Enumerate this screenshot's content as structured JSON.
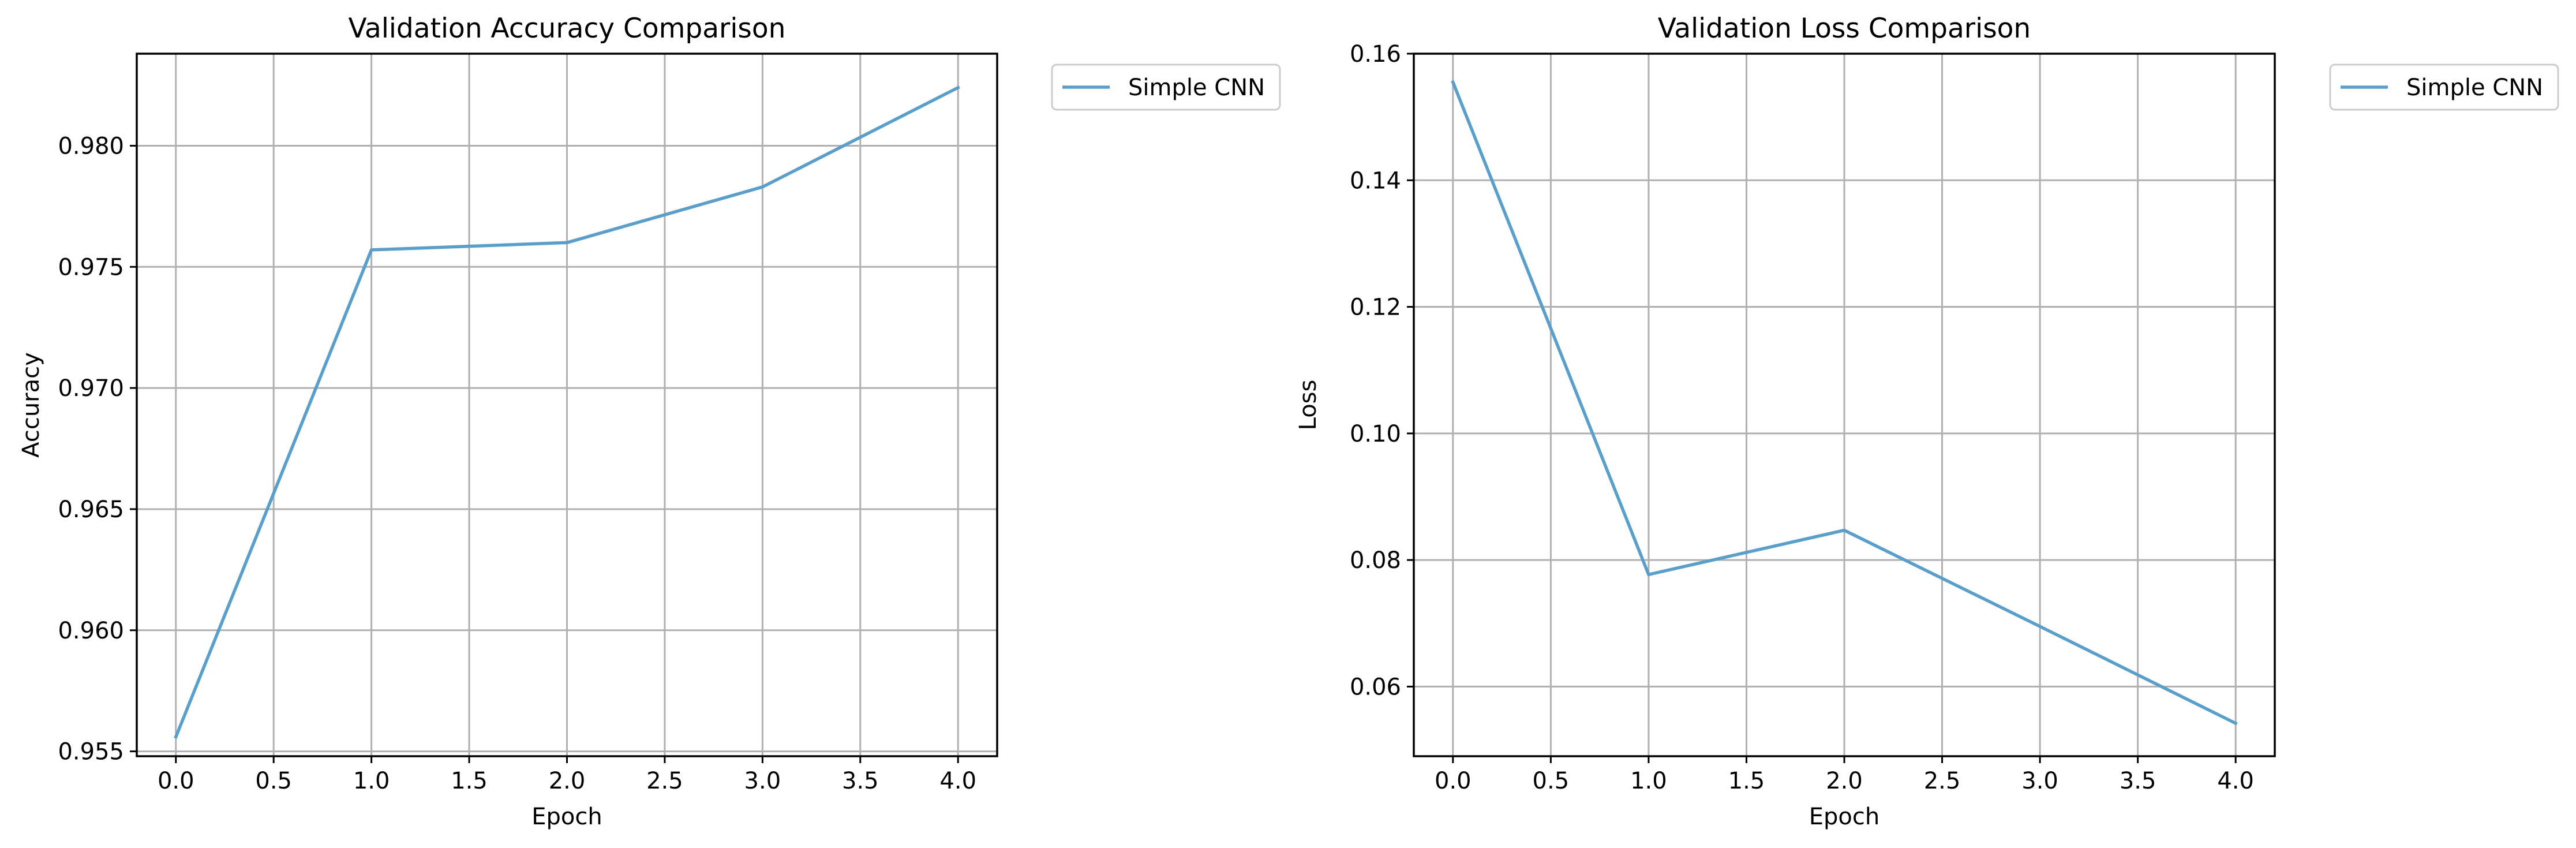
{
  "colors": {
    "series": "#5a9fca"
  },
  "chart_data": [
    {
      "type": "line",
      "title": "Validation Accuracy Comparison",
      "xlabel": "Epoch",
      "ylabel": "Accuracy",
      "xlim": [
        -0.2,
        4.2
      ],
      "ylim": [
        0.9548,
        0.9838
      ],
      "xticks": [
        "0.0",
        "0.5",
        "1.0",
        "1.5",
        "2.0",
        "2.5",
        "3.0",
        "3.5",
        "4.0"
      ],
      "yticks": [
        "0.955",
        "0.960",
        "0.965",
        "0.970",
        "0.975",
        "0.980"
      ],
      "grid": true,
      "legend_position": "outside-top-right",
      "series": [
        {
          "name": "Simple CNN",
          "x": [
            0,
            1,
            2,
            3,
            4
          ],
          "values": [
            0.9556,
            0.9757,
            0.976,
            0.9783,
            0.9824
          ]
        }
      ]
    },
    {
      "type": "line",
      "title": "Validation Loss Comparison",
      "xlabel": "Epoch",
      "ylabel": "Loss",
      "xlim": [
        -0.2,
        4.2
      ],
      "ylim": [
        0.049,
        0.16
      ],
      "xticks": [
        "0.0",
        "0.5",
        "1.0",
        "1.5",
        "2.0",
        "2.5",
        "3.0",
        "3.5",
        "4.0"
      ],
      "yticks": [
        "0.06",
        "0.08",
        "0.10",
        "0.12",
        "0.14",
        "0.16"
      ],
      "grid": true,
      "legend_position": "outside-top-right",
      "series": [
        {
          "name": "Simple CNN",
          "x": [
            0,
            1,
            2,
            3,
            4
          ],
          "values": [
            0.1555,
            0.0777,
            0.0847,
            0.0695,
            0.0542
          ]
        }
      ]
    }
  ]
}
